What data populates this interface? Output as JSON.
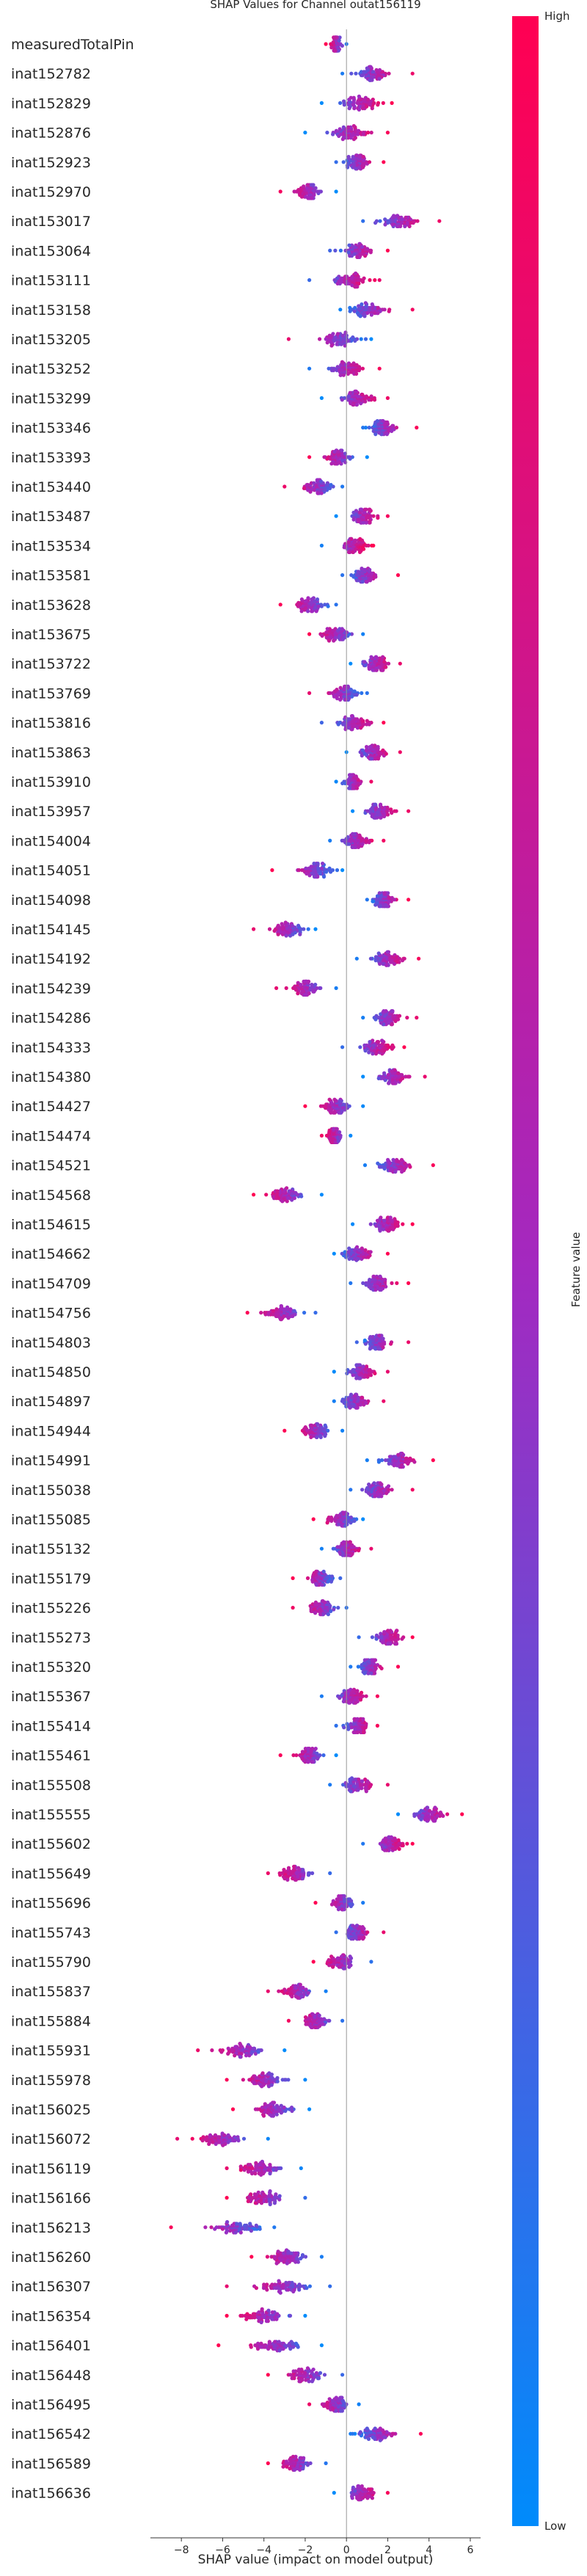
{
  "chart_data": {
    "type": "scatter",
    "subtype": "shap-beeswarm",
    "title": "SHAP Values for Channel outat156119",
    "xlabel": "SHAP value (impact on model output)",
    "xlim": [
      -9.5,
      6.5
    ],
    "xticks": [
      -8,
      -6,
      -4,
      -2,
      0,
      2,
      4,
      6
    ],
    "colorbar": {
      "label": "Feature value",
      "high_label": "High",
      "low_label": "Low",
      "high_color": "#ff0052",
      "low_color": "#008bfb"
    },
    "grid": false,
    "features": [
      {
        "name": "measuredTotalPin",
        "center": -0.5,
        "min": -1.0,
        "max": 0.0
      },
      {
        "name": "inat152782",
        "center": 1.3,
        "min": -0.2,
        "max": 3.2
      },
      {
        "name": "inat152829",
        "center": 0.7,
        "min": -1.2,
        "max": 2.2
      },
      {
        "name": "inat152876",
        "center": 0.2,
        "min": -2.0,
        "max": 2.0
      },
      {
        "name": "inat152923",
        "center": 0.5,
        "min": -0.5,
        "max": 1.8
      },
      {
        "name": "inat152970",
        "center": -1.8,
        "min": -3.2,
        "max": -0.5
      },
      {
        "name": "inat153017",
        "center": 2.5,
        "min": 0.8,
        "max": 4.5
      },
      {
        "name": "inat153064",
        "center": 0.5,
        "min": -0.8,
        "max": 2.0
      },
      {
        "name": "inat153111",
        "center": 0.2,
        "min": -1.8,
        "max": 1.6
      },
      {
        "name": "inat153158",
        "center": 1.0,
        "min": -0.3,
        "max": 3.2
      },
      {
        "name": "inat153205",
        "center": -0.3,
        "min": -2.8,
        "max": 1.2
      },
      {
        "name": "inat153252",
        "center": 0.0,
        "min": -1.8,
        "max": 1.6
      },
      {
        "name": "inat153299",
        "center": 0.6,
        "min": -1.2,
        "max": 2.0
      },
      {
        "name": "inat153346",
        "center": 1.8,
        "min": 0.8,
        "max": 3.4
      },
      {
        "name": "inat153393",
        "center": -0.4,
        "min": -1.8,
        "max": 1.0
      },
      {
        "name": "inat153440",
        "center": -1.4,
        "min": -3.0,
        "max": -0.2
      },
      {
        "name": "inat153487",
        "center": 0.8,
        "min": -0.5,
        "max": 2.0
      },
      {
        "name": "inat153534",
        "center": 0.4,
        "min": -1.2,
        "max": 1.3
      },
      {
        "name": "inat153581",
        "center": 0.9,
        "min": -0.2,
        "max": 2.5
      },
      {
        "name": "inat153628",
        "center": -1.8,
        "min": -3.2,
        "max": -0.5
      },
      {
        "name": "inat153675",
        "center": -0.5,
        "min": -1.8,
        "max": 0.8
      },
      {
        "name": "inat153722",
        "center": 1.5,
        "min": 0.2,
        "max": 2.6
      },
      {
        "name": "inat153769",
        "center": -0.1,
        "min": -1.8,
        "max": 1.0
      },
      {
        "name": "inat153816",
        "center": 0.3,
        "min": -1.2,
        "max": 1.8
      },
      {
        "name": "inat153863",
        "center": 1.2,
        "min": 0.0,
        "max": 2.6
      },
      {
        "name": "inat153910",
        "center": 0.3,
        "min": -0.5,
        "max": 1.2
      },
      {
        "name": "inat153957",
        "center": 1.6,
        "min": 0.3,
        "max": 3.0
      },
      {
        "name": "inat154004",
        "center": 0.5,
        "min": -0.8,
        "max": 1.8
      },
      {
        "name": "inat154051",
        "center": -1.5,
        "min": -3.6,
        "max": -0.2
      },
      {
        "name": "inat154098",
        "center": 1.8,
        "min": 1.0,
        "max": 3.0
      },
      {
        "name": "inat154145",
        "center": -2.8,
        "min": -4.5,
        "max": -1.5
      },
      {
        "name": "inat154192",
        "center": 2.0,
        "min": 0.5,
        "max": 3.5
      },
      {
        "name": "inat154239",
        "center": -2.0,
        "min": -3.4,
        "max": -0.5
      },
      {
        "name": "inat154286",
        "center": 2.0,
        "min": 0.8,
        "max": 3.4
      },
      {
        "name": "inat154333",
        "center": 1.5,
        "min": -0.2,
        "max": 2.8
      },
      {
        "name": "inat154380",
        "center": 2.2,
        "min": 0.8,
        "max": 3.8
      },
      {
        "name": "inat154427",
        "center": -0.5,
        "min": -2.0,
        "max": 0.8
      },
      {
        "name": "inat154474",
        "center": -0.6,
        "min": -1.2,
        "max": 0.2
      },
      {
        "name": "inat154521",
        "center": 2.3,
        "min": 0.9,
        "max": 4.2
      },
      {
        "name": "inat154568",
        "center": -3.0,
        "min": -4.5,
        "max": -1.2
      },
      {
        "name": "inat154615",
        "center": 2.0,
        "min": 0.3,
        "max": 3.2
      },
      {
        "name": "inat154662",
        "center": 0.5,
        "min": -0.6,
        "max": 2.0
      },
      {
        "name": "inat154709",
        "center": 1.5,
        "min": 0.2,
        "max": 3.0
      },
      {
        "name": "inat154756",
        "center": -3.2,
        "min": -4.8,
        "max": -1.5
      },
      {
        "name": "inat154803",
        "center": 1.5,
        "min": 0.5,
        "max": 3.0
      },
      {
        "name": "inat154850",
        "center": 0.7,
        "min": -0.6,
        "max": 2.0
      },
      {
        "name": "inat154897",
        "center": 0.4,
        "min": -0.6,
        "max": 1.8
      },
      {
        "name": "inat154944",
        "center": -1.5,
        "min": -3.0,
        "max": -0.2
      },
      {
        "name": "inat154991",
        "center": 2.5,
        "min": 1.0,
        "max": 4.2
      },
      {
        "name": "inat155038",
        "center": 1.5,
        "min": 0.2,
        "max": 3.2
      },
      {
        "name": "inat155085",
        "center": -0.2,
        "min": -1.6,
        "max": 0.8
      },
      {
        "name": "inat155132",
        "center": 0.0,
        "min": -1.2,
        "max": 1.2
      },
      {
        "name": "inat155179",
        "center": -1.2,
        "min": -2.6,
        "max": -0.3
      },
      {
        "name": "inat155226",
        "center": -1.2,
        "min": -2.6,
        "max": 0.0
      },
      {
        "name": "inat155273",
        "center": 2.0,
        "min": 0.6,
        "max": 3.2
      },
      {
        "name": "inat155320",
        "center": 1.2,
        "min": 0.2,
        "max": 2.5
      },
      {
        "name": "inat155367",
        "center": 0.2,
        "min": -1.2,
        "max": 1.5
      },
      {
        "name": "inat155414",
        "center": 0.5,
        "min": -0.5,
        "max": 1.5
      },
      {
        "name": "inat155461",
        "center": -1.8,
        "min": -3.2,
        "max": -0.5
      },
      {
        "name": "inat155508",
        "center": 0.5,
        "min": -0.8,
        "max": 2.0
      },
      {
        "name": "inat155555",
        "center": 4.0,
        "min": 2.5,
        "max": 5.6
      },
      {
        "name": "inat155602",
        "center": 2.2,
        "min": 0.8,
        "max": 3.2
      },
      {
        "name": "inat155649",
        "center": -2.5,
        "min": -3.8,
        "max": -0.8
      },
      {
        "name": "inat155696",
        "center": -0.2,
        "min": -1.5,
        "max": 0.8
      },
      {
        "name": "inat155743",
        "center": 0.5,
        "min": -0.5,
        "max": 1.8
      },
      {
        "name": "inat155790",
        "center": -0.3,
        "min": -1.6,
        "max": 1.2
      },
      {
        "name": "inat155837",
        "center": -2.5,
        "min": -3.8,
        "max": -1.0
      },
      {
        "name": "inat155884",
        "center": -1.5,
        "min": -2.8,
        "max": -0.2
      },
      {
        "name": "inat155931",
        "center": -5.0,
        "min": -7.2,
        "max": -3.0
      },
      {
        "name": "inat155978",
        "center": -4.0,
        "min": -5.8,
        "max": -2.0
      },
      {
        "name": "inat156025",
        "center": -3.5,
        "min": -5.5,
        "max": -1.8
      },
      {
        "name": "inat156072",
        "center": -6.2,
        "min": -8.2,
        "max": -3.8
      },
      {
        "name": "inat156119",
        "center": -4.2,
        "min": -5.8,
        "max": -2.2
      },
      {
        "name": "inat156166",
        "center": -4.0,
        "min": -5.8,
        "max": -2.0
      },
      {
        "name": "inat156213",
        "center": -5.2,
        "min": -8.5,
        "max": -3.5
      },
      {
        "name": "inat156260",
        "center": -2.8,
        "min": -4.6,
        "max": -1.2
      },
      {
        "name": "inat156307",
        "center": -3.0,
        "min": -5.8,
        "max": -0.8
      },
      {
        "name": "inat156354",
        "center": -4.0,
        "min": -5.8,
        "max": -2.0
      },
      {
        "name": "inat156401",
        "center": -3.5,
        "min": -6.2,
        "max": -1.2
      },
      {
        "name": "inat156448",
        "center": -2.0,
        "min": -3.8,
        "max": -0.2
      },
      {
        "name": "inat156495",
        "center": -0.5,
        "min": -1.8,
        "max": 0.6
      },
      {
        "name": "inat156542",
        "center": 1.5,
        "min": 0.2,
        "max": 3.6
      },
      {
        "name": "inat156589",
        "center": -2.5,
        "min": -3.8,
        "max": -1.0
      },
      {
        "name": "inat156636",
        "center": 0.8,
        "min": -0.6,
        "max": 2.0
      }
    ]
  }
}
